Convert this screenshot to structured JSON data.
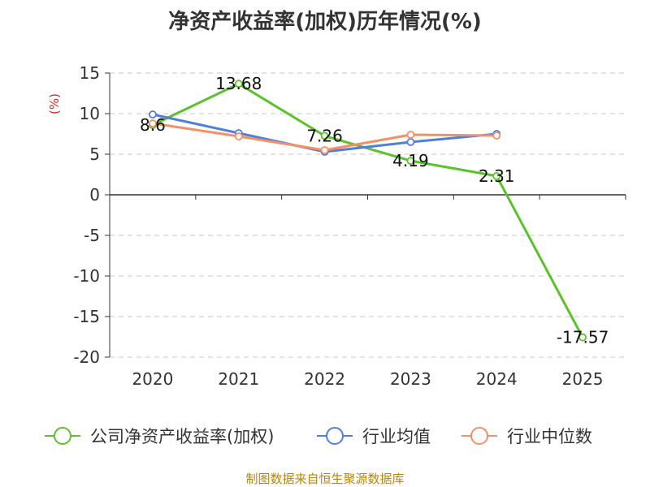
{
  "chart_data": {
    "type": "line",
    "title": "净资产收益率(加权)历年情况(%)",
    "ylabel": "(%)",
    "xlabel": "",
    "categories": [
      "2020",
      "2021",
      "2022",
      "2023",
      "2024",
      "2025"
    ],
    "ylim": [
      -20,
      15
    ],
    "yticks": [
      15,
      10,
      5,
      0,
      -5,
      -10,
      -15,
      -20
    ],
    "grid": true,
    "legend_position": "bottom",
    "series": [
      {
        "name": "公司净资产收益率(加权)",
        "color": "#5cc22b",
        "values": [
          8.6,
          13.68,
          7.26,
          4.19,
          2.31,
          -17.57
        ],
        "labels": [
          "8.6",
          "13.68",
          "7.26",
          "4.19",
          "2.31",
          "-17.57"
        ]
      },
      {
        "name": "行业均值",
        "color": "#4f7fdc",
        "values": [
          9.9,
          7.6,
          5.3,
          6.5,
          7.5,
          null
        ]
      },
      {
        "name": "行业中位数",
        "color": "#f39067",
        "values": [
          8.8,
          7.2,
          5.5,
          7.4,
          7.3,
          null
        ]
      }
    ]
  },
  "footer": {
    "source": "制图数据来自恒生聚源数据库"
  }
}
